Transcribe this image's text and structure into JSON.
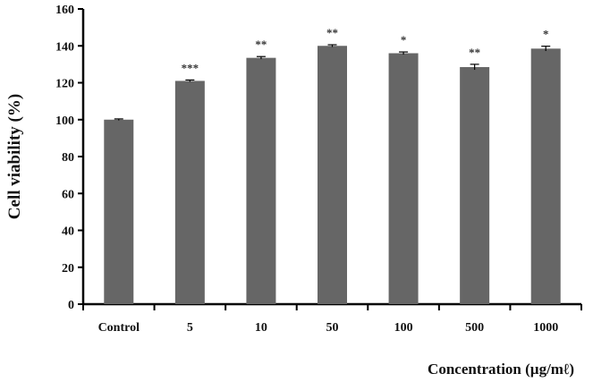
{
  "chart_data": {
    "type": "bar",
    "categories": [
      "Control",
      "5",
      "10",
      "50",
      "100",
      "500",
      "1000"
    ],
    "values": [
      100,
      121,
      133.5,
      140,
      136,
      128.5,
      138.5
    ],
    "errors": [
      0.4,
      0.5,
      0.7,
      0.6,
      0.7,
      1.5,
      1.3
    ],
    "significance": [
      "",
      "***",
      "**",
      "**",
      "*",
      "**",
      "*"
    ],
    "ylabel": "Cell viability  (%)",
    "xlabel": "Concentration (µg/mℓ)",
    "ylim": [
      0,
      160
    ],
    "yticks": [
      0,
      20,
      40,
      60,
      80,
      100,
      120,
      140,
      160
    ],
    "bar_color": "#666666",
    "grid": false,
    "legend": "none"
  }
}
